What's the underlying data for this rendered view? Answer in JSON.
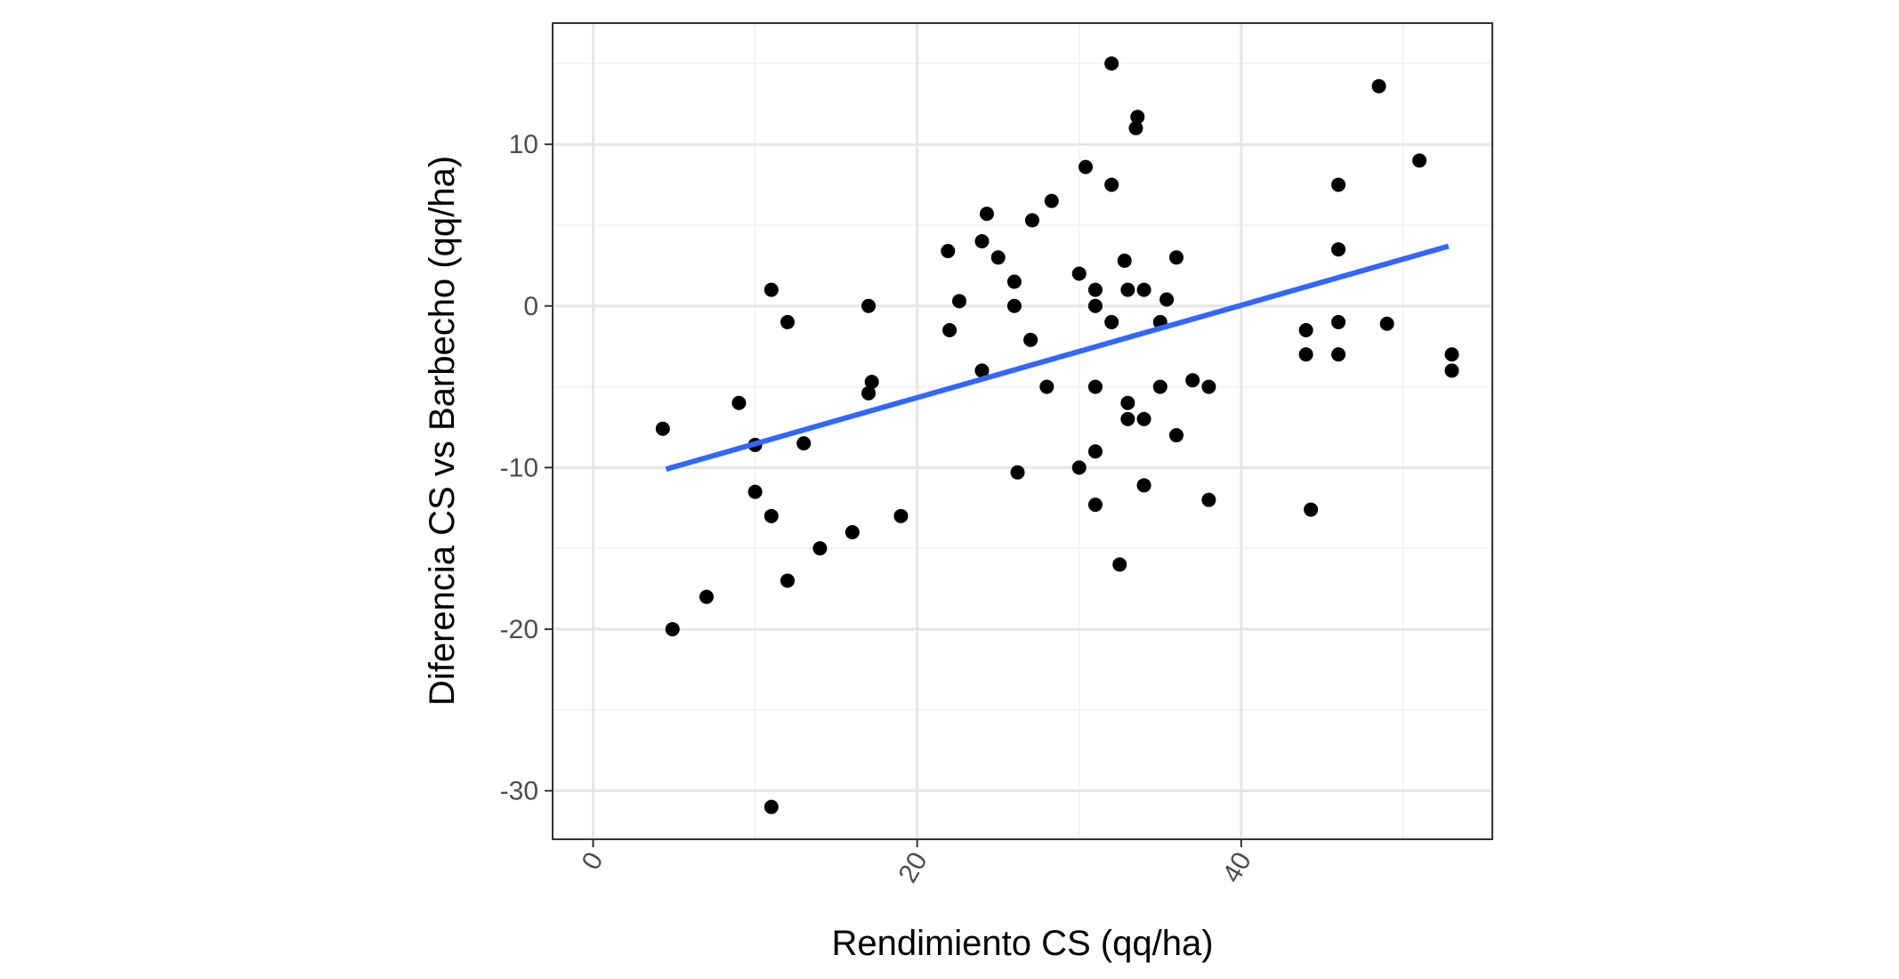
{
  "chart_data": {
    "type": "scatter",
    "title": "",
    "xlabel": "Rendimiento CS (qq/ha)",
    "ylabel": "Diferencia CS vs Barbecho (qq/ha)",
    "xlim": [
      -2.5,
      55.5
    ],
    "ylim": [
      -33,
      17.5
    ],
    "x_ticks": [
      0,
      20,
      40
    ],
    "x_tick_labels": [
      "0",
      "20",
      "40"
    ],
    "y_ticks": [
      -30,
      -20,
      -10,
      0,
      10
    ],
    "y_tick_labels": [
      "-30",
      "-20",
      "-10",
      "0",
      "10"
    ],
    "grid": true,
    "legend": "none",
    "point_color": "#000000",
    "trend_line": {
      "color": "#3366ff",
      "x": [
        4.5,
        52.8
      ],
      "y": [
        -10.1,
        3.7
      ]
    },
    "series": [
      {
        "points": [
          [
            4.3,
            -7.6
          ],
          [
            4.9,
            -20.0
          ],
          [
            7.0,
            -18.0
          ],
          [
            9.0,
            -6.0
          ],
          [
            10.0,
            -8.6
          ],
          [
            10.0,
            -11.5
          ],
          [
            11.0,
            -13.0
          ],
          [
            11.0,
            1.0
          ],
          [
            11.0,
            -31.0
          ],
          [
            12.0,
            -1.0
          ],
          [
            12.0,
            -17.0
          ],
          [
            13.0,
            -8.5
          ],
          [
            14.0,
            -15.0
          ],
          [
            16.0,
            -14.0
          ],
          [
            17.0,
            0.0
          ],
          [
            17.0,
            -5.4
          ],
          [
            17.2,
            -4.7
          ],
          [
            19.0,
            -13.0
          ],
          [
            21.9,
            3.4
          ],
          [
            22.0,
            -1.5
          ],
          [
            22.6,
            0.3
          ],
          [
            24.0,
            4.0
          ],
          [
            24.0,
            -4.0
          ],
          [
            24.3,
            5.7
          ],
          [
            25.0,
            3.0
          ],
          [
            26.0,
            1.5
          ],
          [
            26.0,
            0.0
          ],
          [
            26.2,
            -10.3
          ],
          [
            27.0,
            -2.1
          ],
          [
            27.1,
            5.3
          ],
          [
            28.0,
            -5.0
          ],
          [
            28.3,
            6.5
          ],
          [
            30.0,
            -10.0
          ],
          [
            30.0,
            2.0
          ],
          [
            30.4,
            8.6
          ],
          [
            31.0,
            1.0
          ],
          [
            31.0,
            0.0
          ],
          [
            31.0,
            -5.0
          ],
          [
            31.0,
            -9.0
          ],
          [
            31.0,
            -12.3
          ],
          [
            32.0,
            7.5
          ],
          [
            32.0,
            -1.0
          ],
          [
            32.0,
            15.0
          ],
          [
            32.5,
            -16.0
          ],
          [
            32.8,
            2.8
          ],
          [
            33.0,
            1.0
          ],
          [
            33.0,
            -6.0
          ],
          [
            33.0,
            -7.0
          ],
          [
            33.5,
            11.0
          ],
          [
            33.6,
            11.7
          ],
          [
            34.0,
            1.0
          ],
          [
            34.0,
            -7.0
          ],
          [
            34.0,
            -11.1
          ],
          [
            35.0,
            -1.0
          ],
          [
            35.0,
            -5.0
          ],
          [
            35.4,
            0.4
          ],
          [
            36.0,
            3.0
          ],
          [
            36.0,
            -8.0
          ],
          [
            37.0,
            -4.6
          ],
          [
            38.0,
            -5.0
          ],
          [
            38.0,
            -12.0
          ],
          [
            44.0,
            -1.5
          ],
          [
            44.0,
            -3.0
          ],
          [
            44.3,
            -12.6
          ],
          [
            46.0,
            7.5
          ],
          [
            46.0,
            3.5
          ],
          [
            46.0,
            -1.0
          ],
          [
            46.0,
            -3.0
          ],
          [
            48.5,
            13.6
          ],
          [
            49.0,
            -1.1
          ],
          [
            51.0,
            9.0
          ],
          [
            53.0,
            -3.0
          ],
          [
            53.0,
            -4.0
          ]
        ]
      }
    ]
  }
}
